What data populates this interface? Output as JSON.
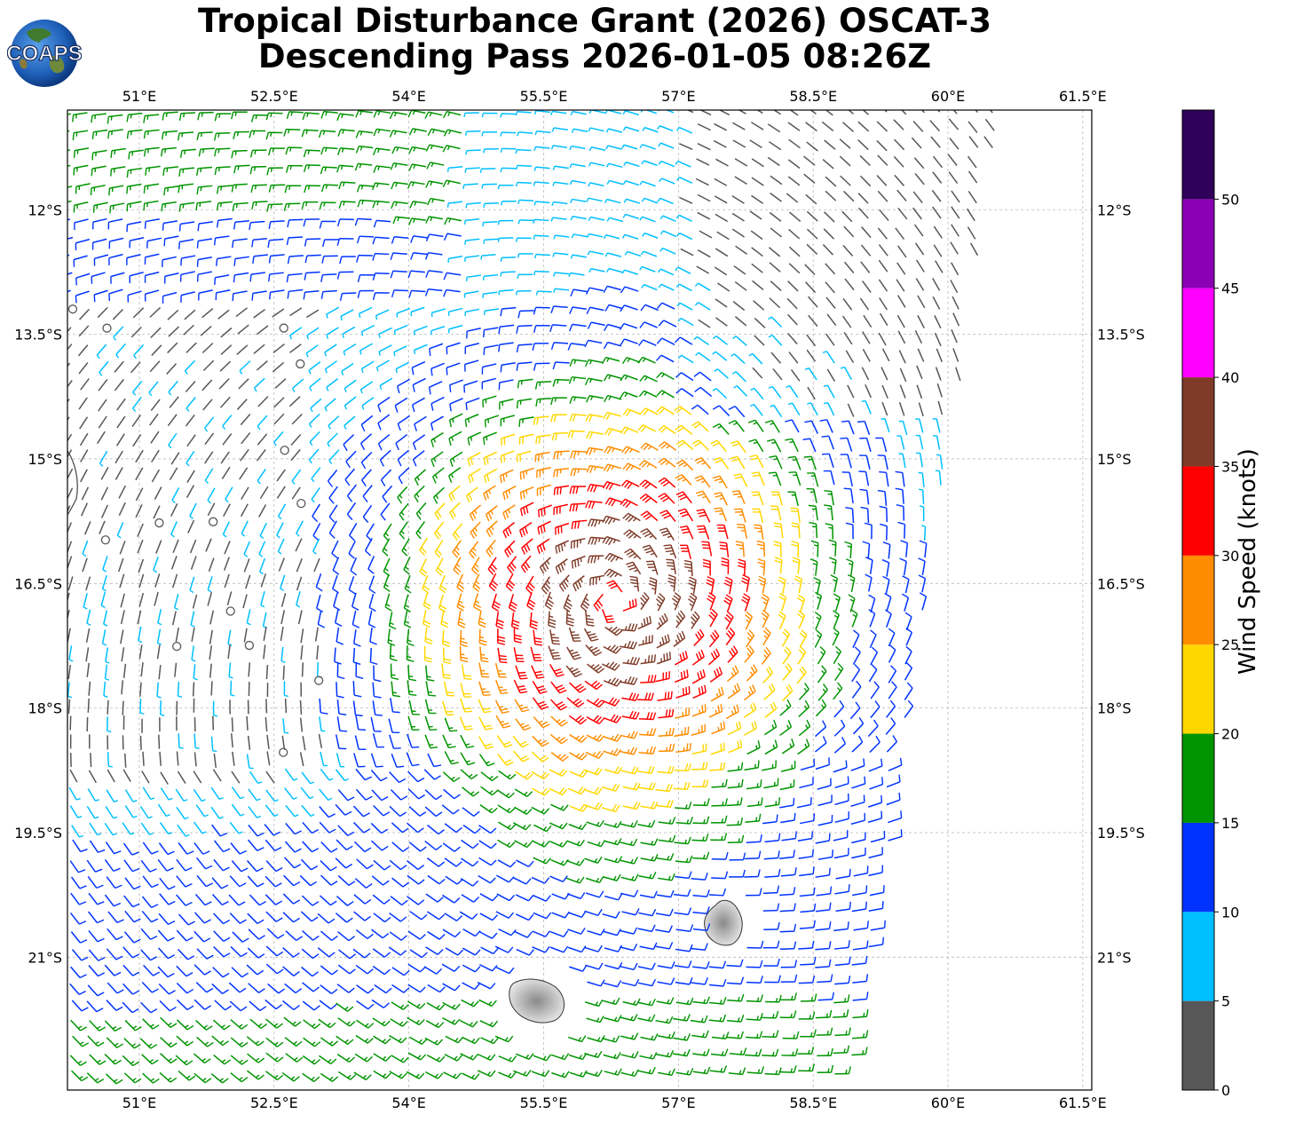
{
  "title": {
    "line1": "Tropical Disturbance Grant (2026) OSCAT-3",
    "line2": "Descending Pass 2026-01-05 08:26Z"
  },
  "logo": {
    "text": "COAPS"
  },
  "map": {
    "lon_range": [
      50.2,
      61.6
    ],
    "lat_range": [
      -10.8,
      -22.6
    ],
    "lon_ticks": [
      "51°E",
      "52.5°E",
      "54°E",
      "55.5°E",
      "57°E",
      "58.5°E",
      "60°E",
      "61.5°E"
    ],
    "lat_ticks": [
      "12°S",
      "13.5°S",
      "15°S",
      "16.5°S",
      "18°S",
      "19.5°S",
      "21°S"
    ],
    "grid": true,
    "circulation_center": {
      "lon": 56.3,
      "lat": -16.7
    },
    "islands": [
      "Réunion",
      "Mauritius"
    ]
  },
  "colorbar": {
    "label": "Wind Speed (knots)",
    "ticks": [
      "0",
      "5",
      "10",
      "15",
      "20",
      "25",
      "30",
      "35",
      "40",
      "45",
      "50"
    ],
    "bins": [
      {
        "min": 0,
        "max": 5,
        "color": "#575757"
      },
      {
        "min": 5,
        "max": 10,
        "color": "#00bfff"
      },
      {
        "min": 10,
        "max": 15,
        "color": "#0033ff"
      },
      {
        "min": 15,
        "max": 20,
        "color": "#009400"
      },
      {
        "min": 20,
        "max": 25,
        "color": "#ffd700"
      },
      {
        "min": 25,
        "max": 30,
        "color": "#ff8c00"
      },
      {
        "min": 30,
        "max": 35,
        "color": "#ff0000"
      },
      {
        "min": 35,
        "max": 40,
        "color": "#7f3b28"
      },
      {
        "min": 40,
        "max": 45,
        "color": "#ff00ff"
      },
      {
        "min": 45,
        "max": 50,
        "color": "#8b00b5"
      },
      {
        "min": 50,
        "max": 55,
        "color": "#30005a"
      }
    ]
  }
}
